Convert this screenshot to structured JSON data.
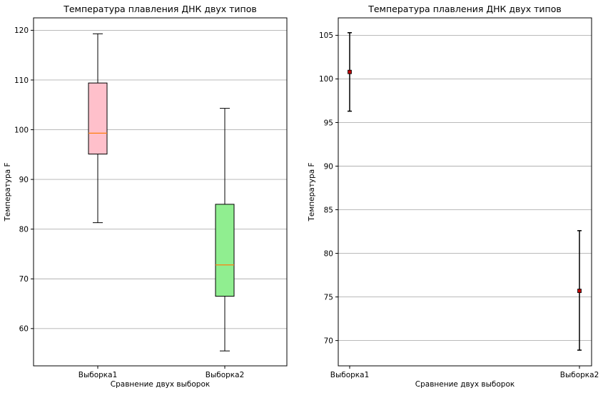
{
  "chart_data": [
    {
      "type": "boxplot",
      "title": "Температура плавления ДНК двух типов",
      "xlabel": "Сравнение двух выборок",
      "ylabel": "Температура F",
      "categories": [
        "Выборка1",
        "Выборка2"
      ],
      "ylim": [
        52.5,
        122.5
      ],
      "yticks": [
        60,
        70,
        80,
        90,
        100,
        110,
        120
      ],
      "grid": "y",
      "boxes": [
        {
          "category": "Выборка1",
          "whisker_low": 81.3,
          "q1": 95.1,
          "median": 99.3,
          "q3": 109.4,
          "whisker_high": 119.3,
          "color": "#ffc0cb"
        },
        {
          "category": "Выборка2",
          "whisker_low": 55.5,
          "q1": 66.5,
          "median": 72.8,
          "q3": 85.0,
          "whisker_high": 104.3,
          "color": "#90ee90"
        }
      ],
      "median_color": "#ff7f0e"
    },
    {
      "type": "errorbar",
      "title": "Температура плавления ДНК двух типов",
      "xlabel": "Сравнение двух выборок",
      "ylabel": "Температура F",
      "categories": [
        "Выборка1",
        "Выборка2"
      ],
      "ylim": [
        67.1,
        107.0
      ],
      "yticks": [
        70,
        75,
        80,
        85,
        90,
        95,
        100,
        105
      ],
      "grid": "y",
      "points": [
        {
          "category": "Выборка1",
          "mean": 100.8,
          "low": 96.3,
          "high": 105.3
        },
        {
          "category": "Выборка2",
          "mean": 75.7,
          "low": 68.9,
          "high": 82.6
        }
      ],
      "marker_color": "#c00000"
    }
  ]
}
